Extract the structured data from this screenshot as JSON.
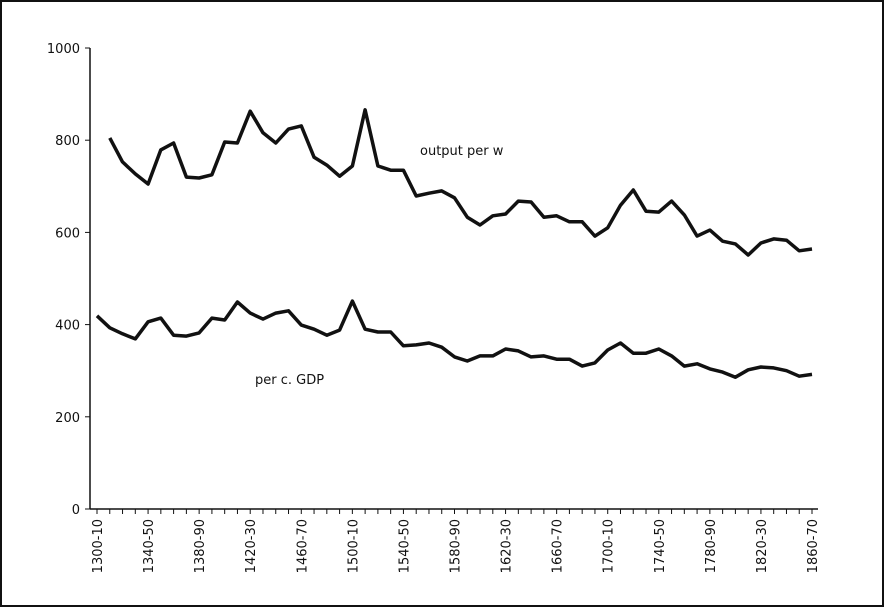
{
  "chart_data": {
    "type": "line",
    "categories": [
      "1300-10",
      null,
      null,
      null,
      "1340-50",
      null,
      null,
      null,
      "1380-90",
      null,
      null,
      null,
      "1420-30",
      null,
      null,
      null,
      "1460-70",
      null,
      null,
      null,
      "1500-10",
      null,
      null,
      null,
      "1540-50",
      null,
      null,
      null,
      "1580-90",
      null,
      null,
      null,
      "1620-30",
      null,
      null,
      null,
      "1660-70",
      null,
      null,
      null,
      "1700-10",
      null,
      null,
      null,
      "1740-50",
      null,
      null,
      null,
      "1780-90",
      null,
      null,
      null,
      "1820-30",
      null,
      null,
      null,
      "1860-70"
    ],
    "series": [
      {
        "name": "output per w",
        "color": "#111111",
        "values": [
          null,
          805,
          753,
          727,
          705,
          779,
          794,
          720,
          718,
          725,
          796,
          794,
          863,
          816,
          794,
          824,
          831,
          763,
          746,
          722,
          744,
          866,
          744,
          735,
          735,
          679,
          685,
          690,
          675,
          633,
          616,
          636,
          640,
          668,
          666,
          633,
          636,
          623,
          623,
          592,
          610,
          659,
          692,
          646,
          644,
          668,
          638,
          592,
          605,
          581,
          575,
          551,
          577,
          586,
          583,
          560,
          564
        ]
      },
      {
        "name": "per c. GDP",
        "color": "#111111",
        "values": [
          419,
          393,
          380,
          369,
          406,
          414,
          377,
          375,
          382,
          414,
          410,
          449,
          425,
          412,
          425,
          430,
          399,
          390,
          377,
          388,
          451,
          390,
          384,
          384,
          354,
          356,
          360,
          351,
          330,
          321,
          332,
          332,
          347,
          343,
          330,
          332,
          325,
          325,
          310,
          317,
          345,
          360,
          338,
          338,
          347,
          332,
          310,
          315,
          304,
          297,
          286,
          302,
          308,
          306,
          300,
          288,
          292
        ]
      }
    ],
    "ylim": [
      0,
      1000
    ],
    "yticks": [
      0,
      200,
      400,
      600,
      800,
      1000
    ],
    "grid": false
  }
}
